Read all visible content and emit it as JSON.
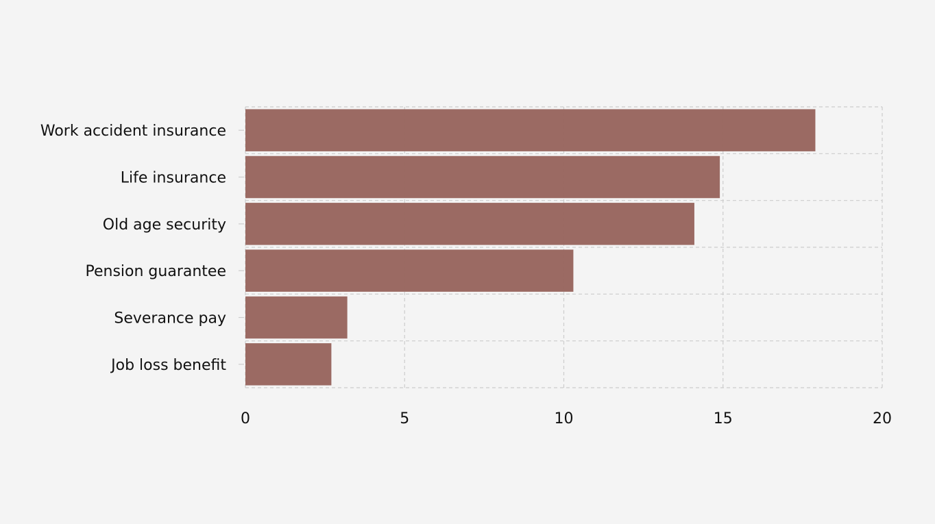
{
  "chart_data": {
    "type": "bar",
    "orientation": "horizontal",
    "title": "",
    "xlabel": "",
    "ylabel": "",
    "categories": [
      "Work accident insurance",
      "Life insurance",
      "Old age security",
      "Pension guarantee",
      "Severance pay",
      "Job loss benefit"
    ],
    "values": [
      17.9,
      14.9,
      14.1,
      10.3,
      3.2,
      2.7
    ],
    "xlim": [
      0,
      20
    ],
    "xticks": [
      0,
      5,
      10,
      15,
      20
    ],
    "xtick_labels": [
      "0",
      "5",
      "10",
      "15",
      "20"
    ],
    "grid": true,
    "legend": "none"
  },
  "colors": {
    "background": "#f4f4f4",
    "bar": "#996760",
    "grid": "#cccccc",
    "axis_text": "#111111"
  }
}
